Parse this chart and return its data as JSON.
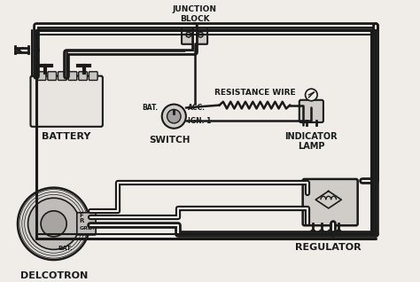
{
  "bg_color": "#f0ede8",
  "line_color": "#1a1a1a",
  "title": "JUNCTION\nBLOCK",
  "labels": {
    "battery": "BATTERY",
    "delcotron": "DELCOTRON",
    "regulator": "REGULATOR",
    "switch": "SWITCH",
    "resistance_wire": "RESISTANCE WIRE",
    "indicator_lamp": "INDICATOR\nLAMP",
    "bat": "BAT.",
    "acc": "ACC.",
    "ign1": "IGN. 1",
    "grd": "GRD.",
    "bat_lower": "BAT.",
    "f_label": "F",
    "r_label": "R"
  },
  "figsize": [
    4.74,
    3.18
  ],
  "dpi": 100
}
